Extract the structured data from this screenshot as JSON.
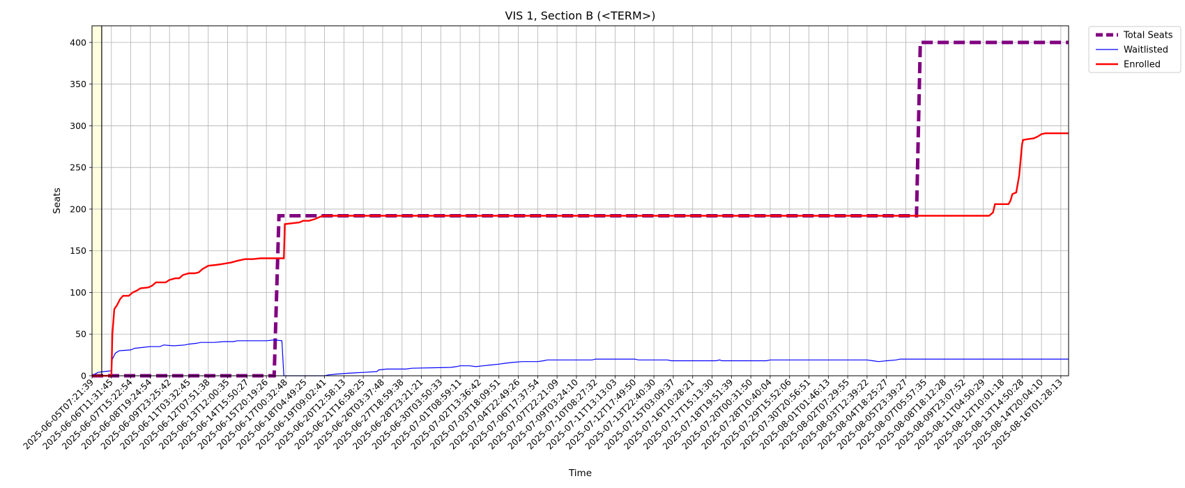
{
  "chart_data": {
    "type": "line",
    "title": "VIS 1, Section B (<TERM>)",
    "xlabel": "Time",
    "ylabel": "Seats",
    "ylim": [
      0,
      420
    ],
    "y_ticks": [
      0,
      50,
      100,
      150,
      200,
      250,
      300,
      350,
      400
    ],
    "x_tick_labels": [
      "2025-06-05T07:21:39",
      "2025-06-06T11:31:45",
      "2025-06-07T15:22:54",
      "2025-06-08T19:24:54",
      "2025-06-09T23:25:42",
      "2025-06-11T03:32:45",
      "2025-06-12T07:51:38",
      "2025-06-13T12:00:35",
      "2025-06-14T15:50:27",
      "2025-06-15T20:19:26",
      "2025-06-17T00:32:48",
      "2025-06-18T04:49:25",
      "2025-06-19T09:02:41",
      "2025-06-20T12:58:13",
      "2025-06-21T16:58:25",
      "2025-06-26T03:37:48",
      "2025-06-27T18:59:38",
      "2025-06-28T23:21:21",
      "2025-06-30T03:50:33",
      "2025-07-01T08:59:11",
      "2025-07-02T13:36:42",
      "2025-07-03T18:09:51",
      "2025-07-04T22:49:26",
      "2025-07-06T17:37:54",
      "2025-07-07T22:21:09",
      "2025-07-09T03:24:10",
      "2025-07-10T08:27:32",
      "2025-07-11T13:13:03",
      "2025-07-12T17:49:50",
      "2025-07-13T22:40:30",
      "2025-07-15T03:09:37",
      "2025-07-16T10:28:21",
      "2025-07-17T15:13:30",
      "2025-07-18T19:51:39",
      "2025-07-20T00:31:50",
      "2025-07-28T10:40:04",
      "2025-07-29T15:52:06",
      "2025-07-30T20:56:51",
      "2025-08-01T01:46:13",
      "2025-08-02T07:29:55",
      "2025-08-03T12:39:22",
      "2025-08-04T18:25:27",
      "2025-08-05T23:39:27",
      "2025-08-07T05:57:35",
      "2025-08-08T18:12:28",
      "2025-08-09T23:07:52",
      "2025-08-11T04:50:29",
      "2025-08-12T10:01:18",
      "2025-08-13T14:50:28",
      "2025-08-14T20:04:10",
      "2025-08-16T01:28:13"
    ],
    "x_range": [
      0,
      50.4
    ],
    "highlight_span": [
      0,
      0.5
    ],
    "vertical_marker_x": 0.5,
    "grid": true,
    "legend_position": "outside-top-right",
    "series": [
      {
        "name": "Total Seats",
        "color": "#800080",
        "style": "dashed",
        "points": [
          [
            0,
            0
          ],
          [
            9.4,
            0
          ],
          [
            9.65,
            192
          ],
          [
            35.5,
            192
          ],
          [
            42.55,
            192
          ],
          [
            42.75,
            400
          ],
          [
            50.4,
            400
          ]
        ]
      },
      {
        "name": "Waitlisted",
        "color": "#0000ff",
        "style": "solid",
        "points": [
          [
            0,
            0
          ],
          [
            0.3,
            4
          ],
          [
            0.6,
            5
          ],
          [
            1.0,
            6
          ],
          [
            1.05,
            20
          ],
          [
            1.2,
            27
          ],
          [
            1.4,
            30
          ],
          [
            2.0,
            31
          ],
          [
            2.2,
            33
          ],
          [
            2.6,
            34
          ],
          [
            3.0,
            35
          ],
          [
            3.5,
            35
          ],
          [
            3.6,
            36
          ],
          [
            3.7,
            37
          ],
          [
            4.2,
            36
          ],
          [
            4.8,
            37
          ],
          [
            5.0,
            38
          ],
          [
            5.4,
            39
          ],
          [
            5.6,
            40
          ],
          [
            6.3,
            40
          ],
          [
            6.8,
            41
          ],
          [
            7.3,
            41
          ],
          [
            7.5,
            42
          ],
          [
            9.0,
            42
          ],
          [
            9.4,
            43
          ],
          [
            9.8,
            42
          ],
          [
            9.9,
            0
          ],
          [
            12.0,
            0
          ],
          [
            12.2,
            1
          ],
          [
            12.6,
            2
          ],
          [
            13.2,
            3
          ],
          [
            14.0,
            4
          ],
          [
            14.7,
            5
          ],
          [
            14.8,
            7
          ],
          [
            15.2,
            8
          ],
          [
            16.2,
            8
          ],
          [
            16.5,
            9
          ],
          [
            18.5,
            10
          ],
          [
            18.8,
            11
          ],
          [
            19.0,
            12
          ],
          [
            19.5,
            12
          ],
          [
            19.8,
            11
          ],
          [
            20.2,
            12
          ],
          [
            20.6,
            13
          ],
          [
            21.0,
            14
          ],
          [
            21.3,
            15
          ],
          [
            21.7,
            16
          ],
          [
            22.2,
            17
          ],
          [
            23.0,
            17
          ],
          [
            23.3,
            18
          ],
          [
            23.5,
            19
          ],
          [
            25.8,
            19
          ],
          [
            26.0,
            20
          ],
          [
            28.0,
            20
          ],
          [
            28.2,
            19
          ],
          [
            29.7,
            19
          ],
          [
            29.9,
            18
          ],
          [
            32.2,
            18
          ],
          [
            32.4,
            19
          ],
          [
            32.5,
            18
          ],
          [
            34.8,
            18
          ],
          [
            35.0,
            19
          ],
          [
            36.5,
            19
          ],
          [
            37.4,
            19
          ],
          [
            40.0,
            19
          ],
          [
            40.3,
            18
          ],
          [
            40.6,
            17
          ],
          [
            41.0,
            18
          ],
          [
            41.5,
            19
          ],
          [
            41.7,
            20
          ],
          [
            50.4,
            20
          ]
        ]
      },
      {
        "name": "Enrolled",
        "color": "#ff0000",
        "style": "solid",
        "points": [
          [
            0,
            0
          ],
          [
            0.5,
            0
          ],
          [
            1.0,
            0
          ],
          [
            1.05,
            50
          ],
          [
            1.15,
            80
          ],
          [
            1.3,
            85
          ],
          [
            1.45,
            92
          ],
          [
            1.6,
            96
          ],
          [
            1.9,
            96
          ],
          [
            2.1,
            100
          ],
          [
            2.3,
            102
          ],
          [
            2.5,
            105
          ],
          [
            2.9,
            106
          ],
          [
            3.1,
            108
          ],
          [
            3.3,
            112
          ],
          [
            3.8,
            112
          ],
          [
            4.0,
            115
          ],
          [
            4.3,
            117
          ],
          [
            4.5,
            117
          ],
          [
            4.7,
            121
          ],
          [
            5.0,
            123
          ],
          [
            5.3,
            123
          ],
          [
            5.5,
            124
          ],
          [
            5.7,
            128
          ],
          [
            6.0,
            132
          ],
          [
            6.4,
            133
          ],
          [
            6.7,
            134
          ],
          [
            7.2,
            136
          ],
          [
            7.5,
            138
          ],
          [
            7.9,
            140
          ],
          [
            8.3,
            140
          ],
          [
            8.7,
            141
          ],
          [
            9.5,
            141
          ],
          [
            9.9,
            141
          ],
          [
            9.95,
            182
          ],
          [
            10.3,
            183
          ],
          [
            10.7,
            184
          ],
          [
            10.9,
            186
          ],
          [
            11.2,
            186
          ],
          [
            11.5,
            188
          ],
          [
            11.8,
            191
          ],
          [
            12.0,
            192
          ],
          [
            38.5,
            192
          ],
          [
            39.5,
            192
          ],
          [
            41.2,
            192
          ],
          [
            42.8,
            192
          ],
          [
            46.0,
            192
          ],
          [
            46.3,
            192
          ],
          [
            46.5,
            196
          ],
          [
            46.6,
            206
          ],
          [
            47.3,
            206
          ],
          [
            47.4,
            210
          ],
          [
            47.5,
            218
          ],
          [
            47.7,
            220
          ],
          [
            47.85,
            240
          ],
          [
            48.0,
            278
          ],
          [
            48.05,
            283
          ],
          [
            48.3,
            284
          ],
          [
            48.6,
            285
          ],
          [
            48.8,
            287
          ],
          [
            49.0,
            290
          ],
          [
            49.2,
            291
          ],
          [
            50.4,
            291
          ]
        ]
      }
    ]
  }
}
